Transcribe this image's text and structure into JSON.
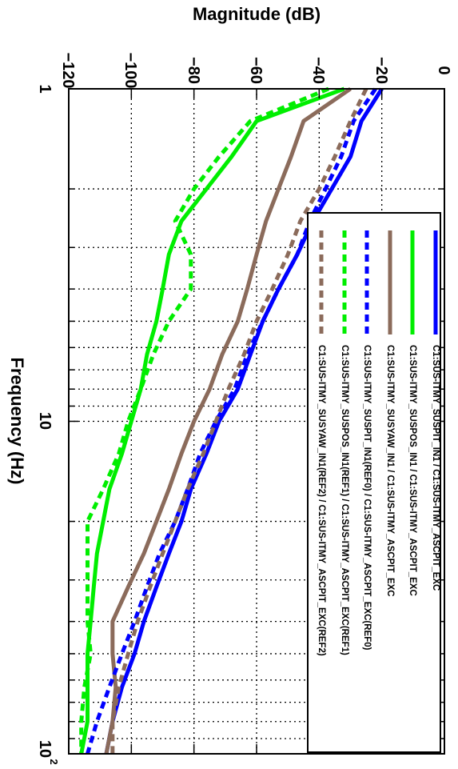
{
  "chart_data": {
    "type": "line",
    "orientation": "rotated-90-clockwise",
    "xlabel": "Frequency (Hz)",
    "ylabel": "Magnitude (dB)",
    "x_scale": "log",
    "xlim": [
      1,
      100
    ],
    "ylim": [
      -120,
      0
    ],
    "x_tick_labels": [
      "1",
      "10",
      "10",
      "2"
    ],
    "y_ticks": [
      0,
      -20,
      -40,
      -60,
      -80,
      -100,
      -120
    ],
    "y_tick_labels": [
      "0",
      "−20",
      "−40",
      "−60",
      "−80",
      "−100",
      "−120"
    ],
    "grid": true,
    "legend_position": "top-right",
    "x": [
      1,
      1.25,
      1.6,
      2,
      2.5,
      3.15,
      4,
      5,
      6.3,
      8,
      10,
      12.5,
      16,
      20,
      25,
      31.5,
      40,
      50,
      63,
      80,
      100
    ],
    "series": [
      {
        "name": "C1:SUS-ITMY_SUSPIT_IN1 / C1:SUS-ITMY_ASCPIT_EXC",
        "color": "#0000ff",
        "dash": "solid",
        "values": [
          -20,
          -26.5,
          -30,
          -36,
          -42,
          -47,
          -53,
          -58,
          -62,
          -66,
          -72,
          -76,
          -81,
          -84,
          -88,
          -92,
          -96,
          -99,
          -103,
          -106,
          -108
        ]
      },
      {
        "name": "C1:SUS-ITMY_SUSPOS_IN1 / C1:SUS-ITMY_ASCPIT_EXC",
        "color": "#00ee00",
        "dash": "solid",
        "values": [
          -32,
          -60,
          -68,
          -76,
          -84,
          -88,
          -90,
          -92,
          -95,
          -97,
          -100,
          -103,
          -107,
          -109,
          -111,
          -112,
          -113,
          -114,
          -114,
          -114,
          -116
        ]
      },
      {
        "name": "C1:SUS-ITMY_SUSYAW_IN1 / C1:SUS-ITMY_ASCPIT_EXC",
        "color": "#8b6b5b",
        "dash": "solid",
        "values": [
          -30,
          -45,
          -49,
          -53,
          -57,
          -60,
          -63,
          -66,
          -71,
          -75,
          -80,
          -84,
          -88,
          -92,
          -96,
          -101,
          -106,
          -106,
          -105,
          -106,
          -108
        ]
      },
      {
        "name": "C1:SUS-ITMY_SUSPIT_IN1(REF0) / C1:SUS-ITMY_ASCPIT_EXC(REF0)",
        "color": "#0000ff",
        "dash": "dashed",
        "values": [
          -22,
          -29,
          -33,
          -38,
          -43,
          -47,
          -53,
          -58,
          -63,
          -67,
          -73,
          -78,
          -82,
          -86,
          -91,
          -95,
          -99,
          -103,
          -107,
          -111,
          -114
        ]
      },
      {
        "name": "C1:SUS-ITMY_SUSPOS_IN1(REF1) / C1:SUS-ITMY_ASCPIT_EXC(REF1)",
        "color": "#00ee00",
        "dash": "dashed",
        "values": [
          -37,
          -62,
          -72,
          -80,
          -86,
          -81,
          -81,
          -88,
          -93,
          -97,
          -101,
          -104,
          -109,
          -114,
          -114,
          -114,
          -114,
          -113,
          -115,
          -116,
          -116
        ]
      },
      {
        "name": "C1:SUS-ITMY_SUSYAW_IN1(REF2) / C1:SUS-ITMY_ASCPIT_EXC(REF2)",
        "color": "#8b6b5b",
        "dash": "dashed",
        "values": [
          -25,
          -30,
          -35,
          -40,
          -46,
          -50,
          -55,
          -60,
          -64,
          -69,
          -73,
          -77,
          -82,
          -86,
          -90,
          -94,
          -98,
          -101,
          -104,
          -106,
          -106
        ]
      }
    ]
  }
}
